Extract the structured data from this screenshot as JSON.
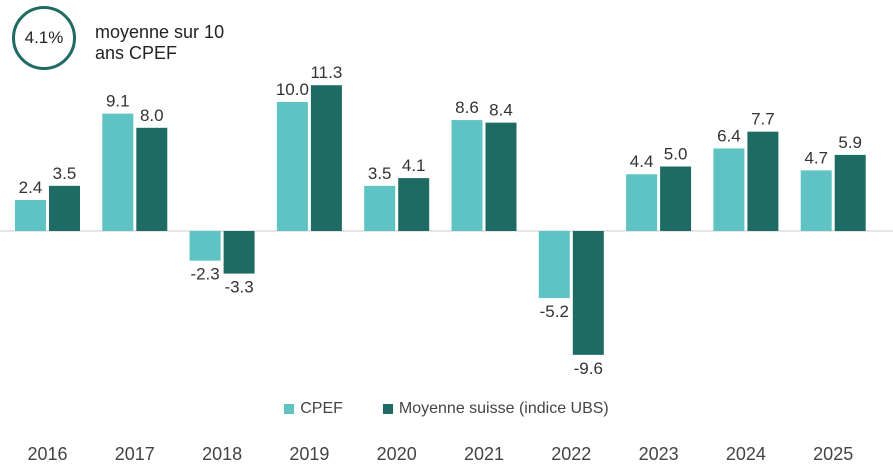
{
  "badge": {
    "value": "4.1%",
    "label": "moyenne sur 10 ans CPEF"
  },
  "colors": {
    "cpef": "#5fc3c3",
    "suisse": "#1d6b63",
    "axis": "#cccccc",
    "text": "#333333"
  },
  "chart_data": {
    "type": "bar",
    "categories": [
      "2016",
      "2017",
      "2018",
      "2019",
      "2020",
      "2021",
      "2022",
      "2023",
      "2024",
      "2025"
    ],
    "series": [
      {
        "name": "CPEF",
        "values": [
          2.4,
          9.1,
          -2.3,
          10.0,
          3.5,
          8.6,
          -5.2,
          4.4,
          6.4,
          4.7
        ]
      },
      {
        "name": "Moyenne suisse (indice UBS)",
        "values": [
          3.5,
          8.0,
          -3.3,
          11.3,
          4.1,
          8.4,
          -9.6,
          5.0,
          7.7,
          5.9
        ]
      }
    ],
    "data_labels": [
      [
        "2.4",
        "9.1",
        "-2.3",
        "10.0",
        "3.5",
        "8.6",
        "-5.2",
        "4.4",
        "6.4",
        "4.7"
      ],
      [
        "3.5",
        "8.0",
        "-3.3",
        "11.3",
        "4.1",
        "8.4",
        "-9.6",
        "5.0",
        "7.7",
        "5.9"
      ]
    ],
    "ylim": [
      -9.6,
      11.3
    ],
    "legend_position": "bottom",
    "grid": false
  }
}
